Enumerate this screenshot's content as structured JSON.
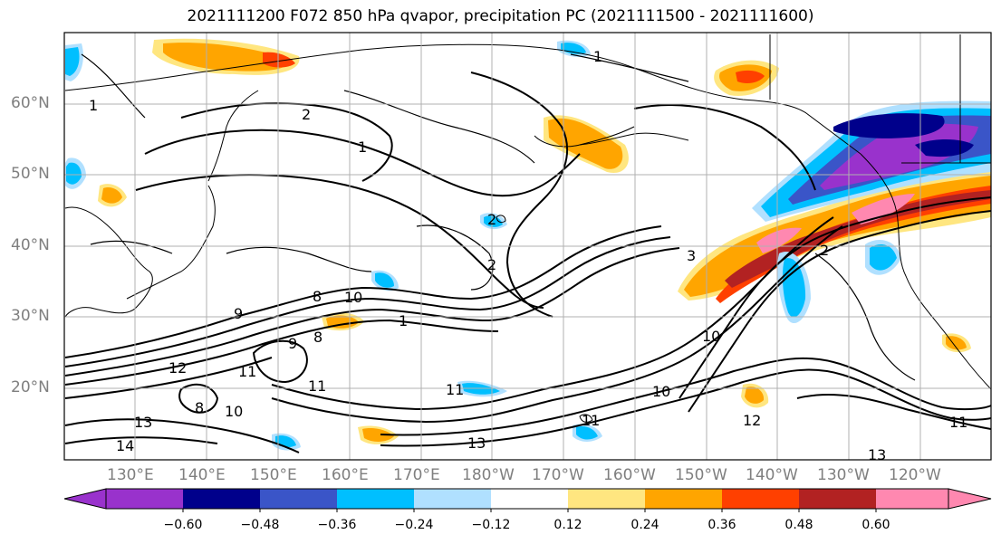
{
  "title": "2021111200 F072 850 hPa qvapor, precipitation PC (2021111500 - 2021111600)",
  "lat_labels": [
    "60°N",
    "50°N",
    "40°N",
    "30°N",
    "20°N"
  ],
  "lon_labels": [
    "130°E",
    "140°E",
    "150°E",
    "160°E",
    "170°E",
    "180°W",
    "170°W",
    "160°W",
    "150°W",
    "140°W",
    "130°W",
    "120°W"
  ],
  "colorbar": {
    "ticks": [
      "−0.60",
      "−0.48",
      "−0.36",
      "−0.24",
      "−0.12",
      "0.12",
      "0.24",
      "0.36",
      "0.48",
      "0.60"
    ],
    "colors": [
      "#9932cc",
      "#00008b",
      "#3a55c8",
      "#00bfff",
      "#b0e0ff",
      "#ffffff",
      "#ffe680",
      "#ffa500",
      "#ff4000",
      "#b22222",
      "#ff88b0"
    ]
  },
  "contour_labels": [
    "1",
    "2",
    "2",
    "1",
    "1",
    "2",
    "2",
    "3",
    "1",
    "8",
    "9",
    "10",
    "8",
    "8",
    "9",
    "10",
    "11",
    "12",
    "11",
    "13",
    "14",
    "13",
    "13",
    "11",
    "10",
    "10",
    "11",
    "12",
    "11"
  ],
  "palette": {
    "shade_neg_strong": "#00008b",
    "shade_neg_purple": "#9932cc",
    "shade_neg_mid": "#3a55c8",
    "shade_neg_light": "#00bfff",
    "shade_neg_faint": "#b0e0ff",
    "shade_pos_faint": "#ffe680",
    "shade_pos_light": "#ffa500",
    "shade_pos_mid": "#ff4000",
    "shade_pos_strong": "#b22222",
    "shade_pos_pink": "#ff88b0",
    "grid": "#b0b0b0"
  }
}
